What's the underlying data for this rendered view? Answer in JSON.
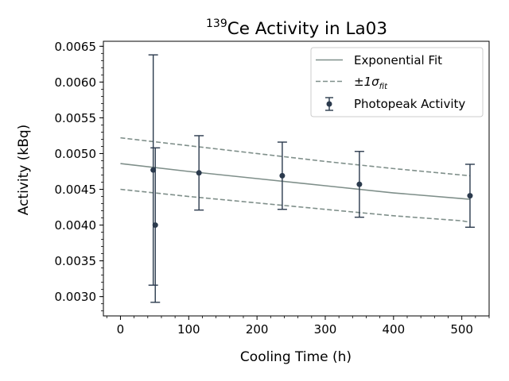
{
  "chart_data": {
    "type": "scatter",
    "title": {
      "sup": "139",
      "main": "Ce Activity in La03"
    },
    "xlabel": "Cooling Time (h)",
    "ylabel": "Activity (kBq)",
    "xlim": [
      -25,
      540
    ],
    "ylim": [
      0.00273,
      0.00657
    ],
    "xticks": [
      0,
      100,
      200,
      300,
      400,
      500
    ],
    "yticks": [
      0.003,
      0.0035,
      0.004,
      0.0045,
      0.005,
      0.0055,
      0.006,
      0.0065
    ],
    "xtick_labels": [
      "0",
      "100",
      "200",
      "300",
      "400",
      "500"
    ],
    "ytick_labels": [
      "0.0030",
      "0.0035",
      "0.0040",
      "0.0045",
      "0.0050",
      "0.0055",
      "0.0060",
      "0.0065"
    ],
    "legend_position": "top-right",
    "legend": {
      "fit": "Exponential Fit",
      "band_prefix": "±1σ",
      "band_sub": "fit",
      "points": "Photopeak Activity"
    },
    "series": [
      {
        "name": "Photopeak Activity",
        "kind": "errorbar",
        "color": "#2b3a4d",
        "points": [
          {
            "x": 48,
            "y": 0.00477,
            "err": 0.00161
          },
          {
            "x": 51,
            "y": 0.004,
            "err": 0.00108
          },
          {
            "x": 115,
            "y": 0.00473,
            "err": 0.00052
          },
          {
            "x": 237,
            "y": 0.00469,
            "err": 0.00047
          },
          {
            "x": 350,
            "y": 0.00457,
            "err": 0.00046
          },
          {
            "x": 512,
            "y": 0.00441,
            "err": 0.00044
          }
        ]
      },
      {
        "name": "Exponential Fit",
        "kind": "line",
        "color": "#7f8f8a",
        "x": [
          0,
          100,
          200,
          300,
          400,
          500,
          512
        ],
        "y": [
          0.00486,
          0.00475,
          0.00465,
          0.00455,
          0.00445,
          0.00437,
          0.00436
        ]
      },
      {
        "name": "±1σ fit upper",
        "kind": "dashed",
        "color": "#7f8f8a",
        "x": [
          0,
          100,
          200,
          300,
          400,
          500,
          512
        ],
        "y": [
          0.00522,
          0.00511,
          0.005,
          0.00489,
          0.00479,
          0.0047,
          0.00469
        ]
      },
      {
        "name": "±1σ fit lower",
        "kind": "dashed",
        "color": "#7f8f8a",
        "x": [
          0,
          100,
          200,
          300,
          400,
          500,
          512
        ],
        "y": [
          0.0045,
          0.0044,
          0.00431,
          0.00422,
          0.00413,
          0.00406,
          0.00404
        ]
      }
    ],
    "grid": false
  }
}
